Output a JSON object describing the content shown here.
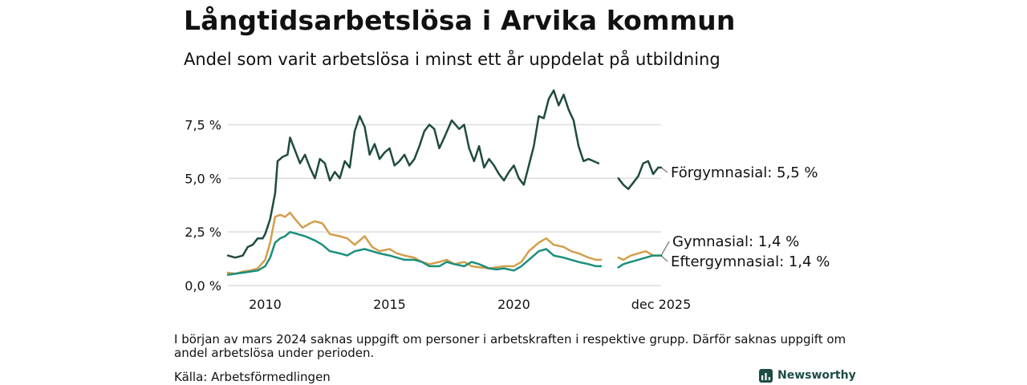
{
  "header": {
    "title": "Långtidsarbetslösa i Arvika kommun",
    "subtitle": "Andel som varit arbetslösa i minst ett år uppdelat på utbildning"
  },
  "footer": {
    "note": "I början av mars 2024 saknas uppgift om personer i arbetskraften i respektive grupp. Därför saknas uppgift om andel arbetslösa under perioden.",
    "source": "Källa: Arbetsförmedlingen",
    "brand": "Newsworthy"
  },
  "colors": {
    "forgymnasial": "#1f4b40",
    "gymnasial": "#d29f4c",
    "eftergymnasial": "#1a8f7c",
    "grid": "#dddddd",
    "brand": "#1d4d45"
  },
  "chart_data": {
    "type": "line",
    "title": "Långtidsarbetslösa i Arvika kommun",
    "subtitle": "Andel som varit arbetslösa i minst ett år uppdelat på utbildning",
    "xlabel": "",
    "ylabel": "",
    "x_range": [
      2008.5,
      2025.92
    ],
    "ylim": [
      0,
      9.2
    ],
    "y_ticks": [
      {
        "value": 0,
        "label": "0,0 %"
      },
      {
        "value": 2.5,
        "label": "2,5 %"
      },
      {
        "value": 5,
        "label": "5,0 %"
      },
      {
        "value": 7.5,
        "label": "7,5 %"
      }
    ],
    "x_ticks": [
      {
        "value": 2010,
        "label": "2010"
      },
      {
        "value": 2015,
        "label": "2015"
      },
      {
        "value": 2020,
        "label": "2020"
      },
      {
        "value": 2025.92,
        "label": "dec 2025"
      }
    ],
    "grid": "horizontal",
    "gap": {
      "start": 2023.9,
      "end": 2024.2
    },
    "series": [
      {
        "name": "Förgymnasial",
        "color_key": "forgymnasial",
        "end_label": "Förgymnasial: 5,5 %",
        "points": [
          [
            2008.5,
            1.4
          ],
          [
            2008.8,
            1.3
          ],
          [
            2009.1,
            1.4
          ],
          [
            2009.3,
            1.8
          ],
          [
            2009.5,
            1.9
          ],
          [
            2009.7,
            2.2
          ],
          [
            2009.9,
            2.2
          ],
          [
            2010.0,
            2.4
          ],
          [
            2010.2,
            3.1
          ],
          [
            2010.4,
            4.3
          ],
          [
            2010.5,
            5.8
          ],
          [
            2010.7,
            6.0
          ],
          [
            2010.9,
            6.1
          ],
          [
            2011.0,
            6.9
          ],
          [
            2011.2,
            6.3
          ],
          [
            2011.4,
            5.7
          ],
          [
            2011.6,
            6.1
          ],
          [
            2011.8,
            5.5
          ],
          [
            2012.0,
            5.0
          ],
          [
            2012.2,
            5.9
          ],
          [
            2012.4,
            5.7
          ],
          [
            2012.6,
            4.9
          ],
          [
            2012.8,
            5.3
          ],
          [
            2013.0,
            5.0
          ],
          [
            2013.2,
            5.8
          ],
          [
            2013.4,
            5.5
          ],
          [
            2013.6,
            7.2
          ],
          [
            2013.8,
            7.9
          ],
          [
            2014.0,
            7.4
          ],
          [
            2014.2,
            6.1
          ],
          [
            2014.4,
            6.6
          ],
          [
            2014.6,
            5.9
          ],
          [
            2014.8,
            6.2
          ],
          [
            2015.0,
            6.4
          ],
          [
            2015.2,
            5.6
          ],
          [
            2015.4,
            5.8
          ],
          [
            2015.6,
            6.1
          ],
          [
            2015.8,
            5.6
          ],
          [
            2016.0,
            5.9
          ],
          [
            2016.2,
            6.5
          ],
          [
            2016.4,
            7.2
          ],
          [
            2016.6,
            7.5
          ],
          [
            2016.8,
            7.3
          ],
          [
            2017.0,
            6.4
          ],
          [
            2017.2,
            6.9
          ],
          [
            2017.5,
            7.7
          ],
          [
            2017.8,
            7.3
          ],
          [
            2018.0,
            7.5
          ],
          [
            2018.2,
            6.4
          ],
          [
            2018.4,
            5.8
          ],
          [
            2018.6,
            6.5
          ],
          [
            2018.8,
            5.5
          ],
          [
            2019.0,
            5.9
          ],
          [
            2019.2,
            5.6
          ],
          [
            2019.4,
            5.2
          ],
          [
            2019.6,
            4.9
          ],
          [
            2019.8,
            5.3
          ],
          [
            2020.0,
            5.6
          ],
          [
            2020.2,
            5.0
          ],
          [
            2020.4,
            4.7
          ],
          [
            2020.6,
            5.6
          ],
          [
            2020.8,
            6.5
          ],
          [
            2021.0,
            7.9
          ],
          [
            2021.2,
            7.8
          ],
          [
            2021.4,
            8.7
          ],
          [
            2021.6,
            9.1
          ],
          [
            2021.8,
            8.4
          ],
          [
            2022.0,
            8.9
          ],
          [
            2022.2,
            8.2
          ],
          [
            2022.4,
            7.7
          ],
          [
            2022.6,
            6.5
          ],
          [
            2022.8,
            5.8
          ],
          [
            2023.0,
            5.9
          ],
          [
            2023.2,
            5.8
          ],
          [
            2023.4,
            5.7
          ],
          [
            2024.2,
            5.0
          ],
          [
            2024.4,
            4.7
          ],
          [
            2024.6,
            4.5
          ],
          [
            2024.8,
            4.8
          ],
          [
            2025.0,
            5.1
          ],
          [
            2025.2,
            5.7
          ],
          [
            2025.4,
            5.8
          ],
          [
            2025.6,
            5.2
          ],
          [
            2025.8,
            5.5
          ],
          [
            2025.92,
            5.5
          ]
        ]
      },
      {
        "name": "Gymnasial",
        "color_key": "gymnasial",
        "end_label": "Gymnasial: 1,4 %",
        "points": [
          [
            2008.5,
            0.6
          ],
          [
            2008.8,
            0.55
          ],
          [
            2009.1,
            0.65
          ],
          [
            2009.4,
            0.7
          ],
          [
            2009.7,
            0.8
          ],
          [
            2010.0,
            1.2
          ],
          [
            2010.2,
            2.0
          ],
          [
            2010.4,
            3.2
          ],
          [
            2010.6,
            3.3
          ],
          [
            2010.8,
            3.2
          ],
          [
            2011.0,
            3.4
          ],
          [
            2011.2,
            3.1
          ],
          [
            2011.5,
            2.7
          ],
          [
            2011.8,
            2.9
          ],
          [
            2012.0,
            3.0
          ],
          [
            2012.3,
            2.9
          ],
          [
            2012.6,
            2.4
          ],
          [
            2013.0,
            2.3
          ],
          [
            2013.3,
            2.2
          ],
          [
            2013.6,
            1.9
          ],
          [
            2014.0,
            2.3
          ],
          [
            2014.3,
            1.8
          ],
          [
            2014.6,
            1.6
          ],
          [
            2015.0,
            1.7
          ],
          [
            2015.3,
            1.5
          ],
          [
            2015.6,
            1.4
          ],
          [
            2016.0,
            1.3
          ],
          [
            2016.3,
            1.1
          ],
          [
            2016.6,
            1.0
          ],
          [
            2017.0,
            1.1
          ],
          [
            2017.3,
            1.2
          ],
          [
            2017.6,
            1.0
          ],
          [
            2018.0,
            1.1
          ],
          [
            2018.3,
            0.9
          ],
          [
            2018.6,
            0.85
          ],
          [
            2019.0,
            0.8
          ],
          [
            2019.3,
            0.85
          ],
          [
            2019.6,
            0.9
          ],
          [
            2020.0,
            0.9
          ],
          [
            2020.3,
            1.1
          ],
          [
            2020.6,
            1.6
          ],
          [
            2021.0,
            2.0
          ],
          [
            2021.3,
            2.2
          ],
          [
            2021.6,
            1.9
          ],
          [
            2022.0,
            1.8
          ],
          [
            2022.3,
            1.6
          ],
          [
            2022.6,
            1.5
          ],
          [
            2023.0,
            1.3
          ],
          [
            2023.3,
            1.2
          ],
          [
            2023.5,
            1.2
          ],
          [
            2024.2,
            1.3
          ],
          [
            2024.4,
            1.2
          ],
          [
            2024.7,
            1.4
          ],
          [
            2025.0,
            1.5
          ],
          [
            2025.3,
            1.6
          ],
          [
            2025.6,
            1.4
          ],
          [
            2025.92,
            1.4
          ]
        ]
      },
      {
        "name": "Eftergymnasial",
        "color_key": "eftergymnasial",
        "end_label": "Eftergymnasial: 1,4 %",
        "points": [
          [
            2008.5,
            0.5
          ],
          [
            2008.8,
            0.55
          ],
          [
            2009.1,
            0.6
          ],
          [
            2009.4,
            0.65
          ],
          [
            2009.7,
            0.7
          ],
          [
            2010.0,
            0.9
          ],
          [
            2010.2,
            1.3
          ],
          [
            2010.4,
            2.0
          ],
          [
            2010.6,
            2.2
          ],
          [
            2010.8,
            2.3
          ],
          [
            2011.0,
            2.5
          ],
          [
            2011.3,
            2.4
          ],
          [
            2011.6,
            2.3
          ],
          [
            2012.0,
            2.1
          ],
          [
            2012.3,
            1.9
          ],
          [
            2012.6,
            1.6
          ],
          [
            2013.0,
            1.5
          ],
          [
            2013.3,
            1.4
          ],
          [
            2013.6,
            1.6
          ],
          [
            2014.0,
            1.7
          ],
          [
            2014.3,
            1.6
          ],
          [
            2014.6,
            1.5
          ],
          [
            2015.0,
            1.4
          ],
          [
            2015.3,
            1.3
          ],
          [
            2015.6,
            1.2
          ],
          [
            2016.0,
            1.2
          ],
          [
            2016.3,
            1.1
          ],
          [
            2016.6,
            0.9
          ],
          [
            2017.0,
            0.9
          ],
          [
            2017.3,
            1.1
          ],
          [
            2017.6,
            1.0
          ],
          [
            2018.0,
            0.9
          ],
          [
            2018.3,
            1.1
          ],
          [
            2018.6,
            1.0
          ],
          [
            2019.0,
            0.8
          ],
          [
            2019.3,
            0.75
          ],
          [
            2019.6,
            0.8
          ],
          [
            2020.0,
            0.7
          ],
          [
            2020.3,
            0.9
          ],
          [
            2020.6,
            1.2
          ],
          [
            2021.0,
            1.6
          ],
          [
            2021.3,
            1.7
          ],
          [
            2021.6,
            1.4
          ],
          [
            2022.0,
            1.3
          ],
          [
            2022.3,
            1.2
          ],
          [
            2022.6,
            1.1
          ],
          [
            2023.0,
            1.0
          ],
          [
            2023.3,
            0.9
          ],
          [
            2023.5,
            0.9
          ],
          [
            2024.2,
            0.85
          ],
          [
            2024.4,
            1.0
          ],
          [
            2024.7,
            1.1
          ],
          [
            2025.0,
            1.2
          ],
          [
            2025.3,
            1.3
          ],
          [
            2025.6,
            1.4
          ],
          [
            2025.92,
            1.4
          ]
        ]
      }
    ]
  }
}
